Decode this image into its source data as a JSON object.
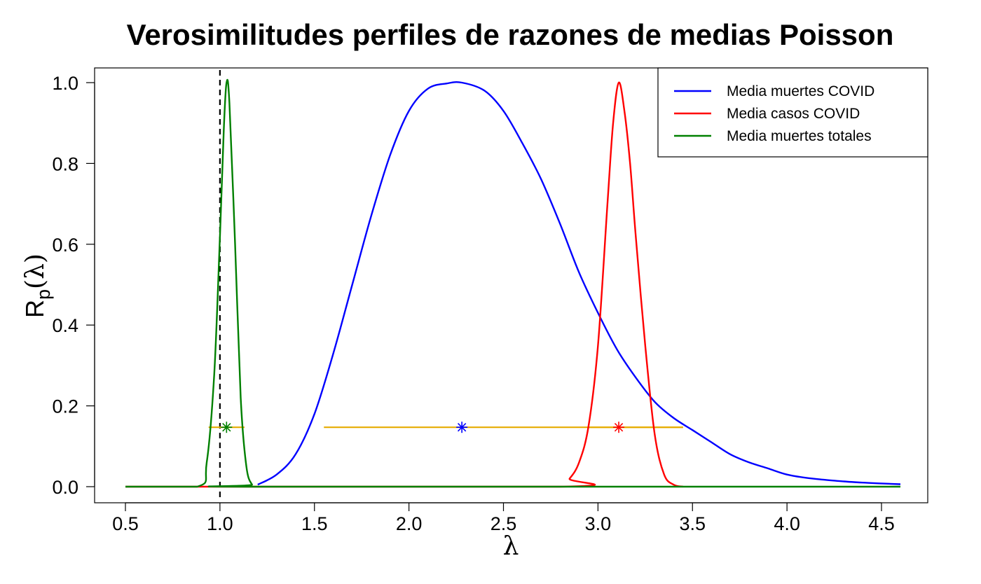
{
  "chart_data": {
    "type": "line",
    "title": "Verosimilitudes perfiles de razones de medias Poisson",
    "xlabel": "λ",
    "ylabel": {
      "main": "R",
      "sub": "p",
      "arg": "(λ)"
    },
    "xlim": [
      0.5,
      4.6
    ],
    "ylim": [
      0.0,
      1.0
    ],
    "xticks": [
      "0.5",
      "1.0",
      "1.5",
      "2.0",
      "2.5",
      "3.0",
      "3.5",
      "4.0",
      "4.5"
    ],
    "yticks": [
      "0.0",
      "0.2",
      "0.4",
      "0.6",
      "0.8",
      "1.0"
    ],
    "reference_line": {
      "x": 1.0,
      "style": "dashed",
      "color": "#000000"
    },
    "likelihood_level": 0.147,
    "series": [
      {
        "name": "Media muertes COVID",
        "color": "#0000ff",
        "x": [
          1.2,
          1.3,
          1.4,
          1.5,
          1.6,
          1.7,
          1.8,
          1.9,
          2.0,
          2.1,
          2.2,
          2.28,
          2.4,
          2.5,
          2.6,
          2.7,
          2.8,
          2.9,
          3.0,
          3.1,
          3.2,
          3.3,
          3.4,
          3.5,
          3.6,
          3.7,
          3.8,
          3.9,
          4.0,
          4.1,
          4.2,
          4.3,
          4.4,
          4.5,
          4.6
        ],
        "y": [
          0.005,
          0.03,
          0.08,
          0.18,
          0.33,
          0.5,
          0.67,
          0.82,
          0.93,
          0.985,
          0.998,
          1.0,
          0.98,
          0.93,
          0.85,
          0.76,
          0.65,
          0.53,
          0.43,
          0.34,
          0.27,
          0.21,
          0.17,
          0.14,
          0.11,
          0.08,
          0.06,
          0.045,
          0.03,
          0.022,
          0.017,
          0.013,
          0.01,
          0.008,
          0.006
        ],
        "mle": 2.28,
        "interval": [
          1.55,
          3.45
        ],
        "interval_color": "#e6ac00"
      },
      {
        "name": "Media casos COVID",
        "color": "#ff0000",
        "x": [
          0.5,
          2.8,
          2.85,
          2.9,
          2.95,
          3.0,
          3.05,
          3.08,
          3.11,
          3.14,
          3.17,
          3.2,
          3.25,
          3.3,
          3.35,
          3.4,
          3.45
        ],
        "y": [
          0.0,
          0.0,
          0.02,
          0.06,
          0.15,
          0.35,
          0.7,
          0.9,
          1.0,
          0.93,
          0.8,
          0.62,
          0.35,
          0.13,
          0.03,
          0.005,
          0.0
        ],
        "mle": 3.11,
        "interval": [
          2.95,
          3.45
        ],
        "interval_color": "#e6ac00"
      },
      {
        "name": "Media muertes totales",
        "color": "#008000",
        "x": [
          0.5,
          0.88,
          0.93,
          0.97,
          1.0,
          1.02,
          1.035,
          1.05,
          1.08,
          1.11,
          1.14,
          1.17,
          1.2,
          4.6
        ],
        "y": [
          0.0,
          0.0,
          0.06,
          0.28,
          0.62,
          0.88,
          1.0,
          0.95,
          0.6,
          0.22,
          0.05,
          0.005,
          0.0,
          0.0
        ],
        "mle": 1.035,
        "interval": [
          0.94,
          1.13
        ],
        "interval_color": "#e6ac00"
      }
    ],
    "legend": {
      "position": "top-right",
      "entries": [
        "Media muertes COVID",
        "Media casos COVID",
        "Media muertes totales"
      ]
    }
  }
}
